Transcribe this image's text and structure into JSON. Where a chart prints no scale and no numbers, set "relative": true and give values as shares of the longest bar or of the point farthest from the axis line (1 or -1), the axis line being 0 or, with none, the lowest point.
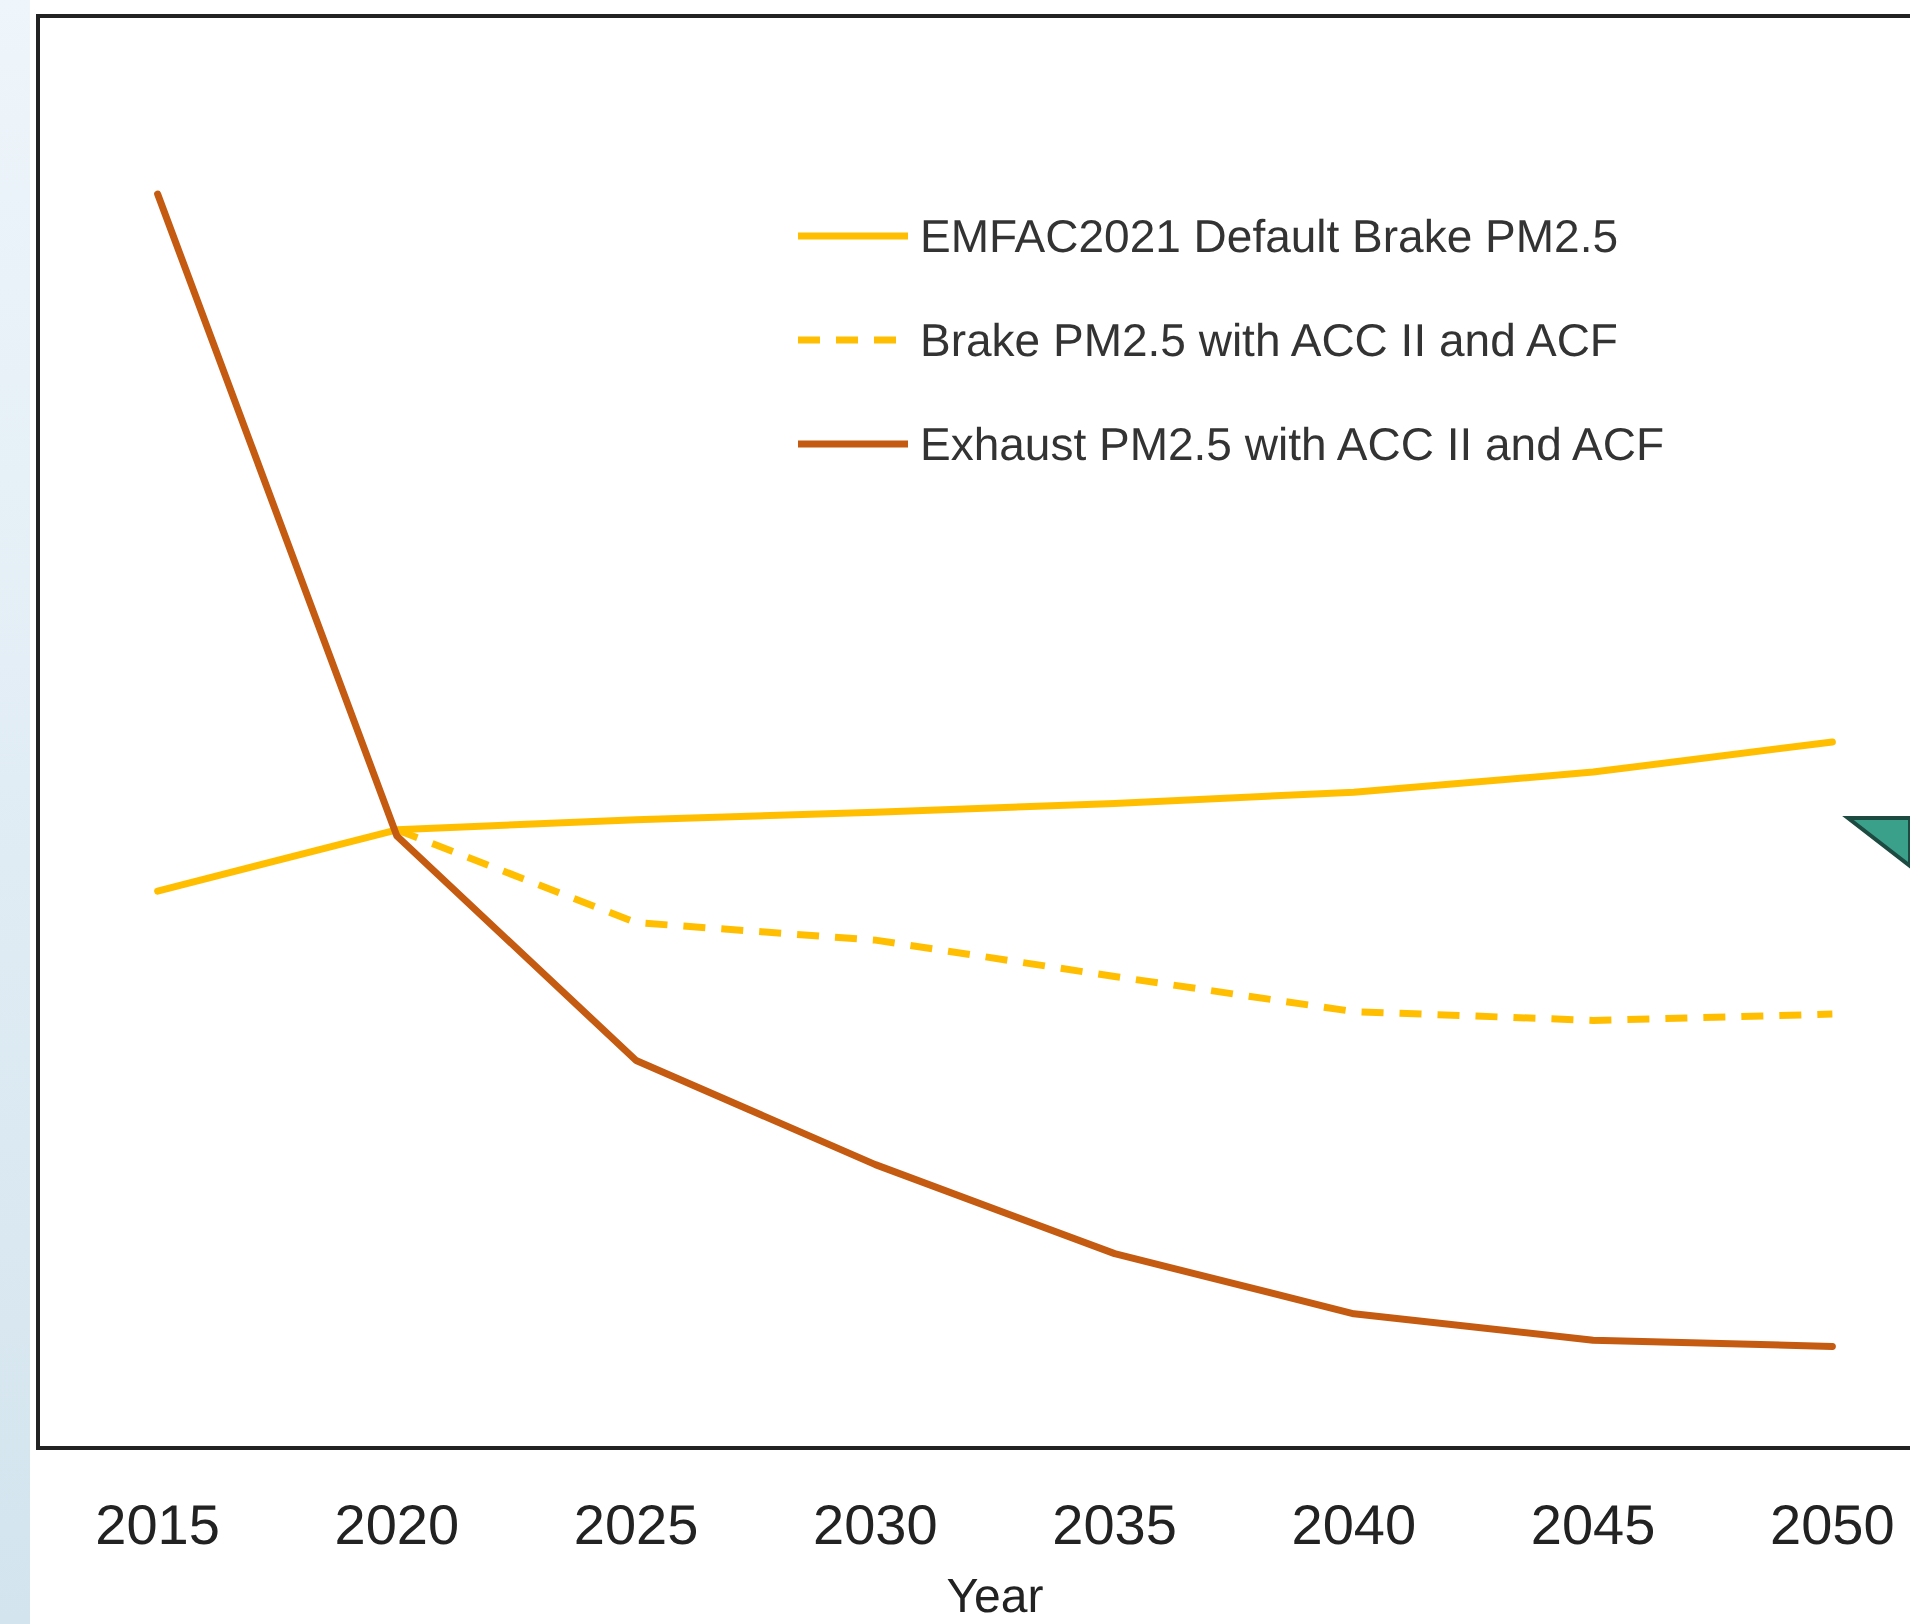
{
  "chart_data": {
    "type": "line",
    "xlabel": "Year",
    "relative": true,
    "legend": "top right",
    "categories": [
      "2015",
      "2020",
      "2025",
      "2030",
      "2035",
      "2040",
      "2045",
      "2050"
    ],
    "series": [
      {
        "name": "EMFAC2021 Default Brake PM2.5",
        "color": "#ffbf00",
        "line_style": "solid",
        "values": [
          0.444,
          0.493,
          0.501,
          0.507,
          0.514,
          0.523,
          0.539,
          0.563
        ]
      },
      {
        "name": "Brake PM2.5 with ACC II and ACF",
        "color": "#ffbf00",
        "line_style": "dashed",
        "values": [
          null,
          0.493,
          0.419,
          0.405,
          0.376,
          0.348,
          0.341,
          0.346
        ]
      },
      {
        "name": "Exhaust PM2.5 with ACC II and ACF",
        "color": "#c55a11",
        "line_style": "solid",
        "values": [
          1,
          0.488,
          0.309,
          0.226,
          0.155,
          0.107,
          0.086,
          0.081
        ]
      }
    ]
  }
}
